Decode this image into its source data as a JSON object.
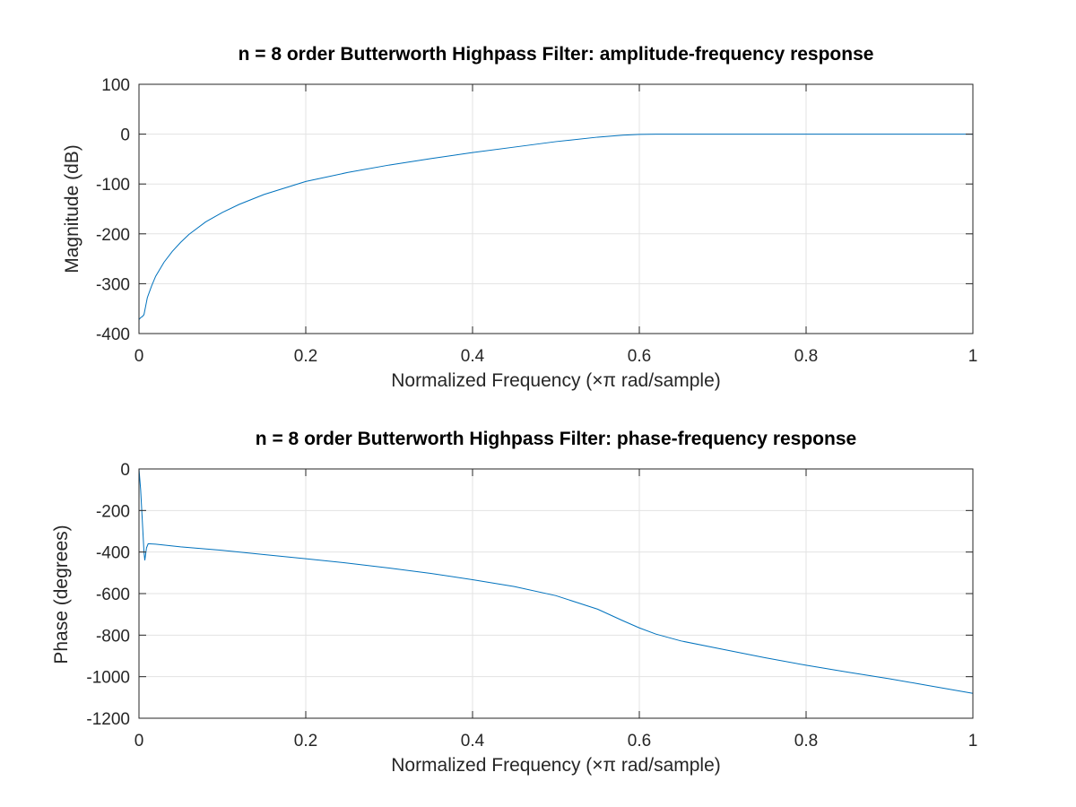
{
  "chart_data": [
    {
      "type": "line",
      "title": "n = 8 order Butterworth Highpass Filter: amplitude-frequency response",
      "xlabel": "Normalized Frequency (×π rad/sample)",
      "ylabel": "Magnitude (dB)",
      "xlim": [
        0,
        1
      ],
      "ylim": [
        -400,
        100
      ],
      "xticks": [
        0,
        0.2,
        0.4,
        0.6,
        0.8,
        1
      ],
      "xtick_labels": [
        "0",
        "0.2",
        "0.4",
        "0.6",
        "0.8",
        "1"
      ],
      "yticks": [
        100,
        0,
        -100,
        -200,
        -300,
        -400
      ],
      "ytick_labels": [
        "100",
        "0",
        "-100",
        "-200",
        "-300",
        "-400"
      ],
      "grid": true,
      "color": "#0072bd",
      "series": [
        {
          "x": [
            0,
            0.002,
            0.004,
            0.006,
            0.008,
            0.01,
            0.015,
            0.02,
            0.03,
            0.04,
            0.05,
            0.06,
            0.08,
            0.1,
            0.12,
            0.15,
            0.2,
            0.25,
            0.3,
            0.35,
            0.4,
            0.45,
            0.5,
            0.55,
            0.58,
            0.6,
            0.62,
            0.65,
            0.7,
            0.8,
            0.9,
            1.0
          ],
          "y": [
            -372,
            -368,
            -366,
            -362,
            -345,
            -328,
            -305,
            -285,
            -257,
            -235,
            -217,
            -201,
            -176,
            -157,
            -141,
            -121,
            -95,
            -77,
            -62,
            -49,
            -37,
            -26,
            -15,
            -6,
            -2,
            -0.5,
            0,
            0,
            0,
            0,
            0,
            0
          ]
        }
      ]
    },
    {
      "type": "line",
      "title": "n = 8 order Butterworth Highpass Filter: phase-frequency response",
      "xlabel": "Normalized Frequency (×π rad/sample)",
      "ylabel": "Phase (degrees)",
      "xlim": [
        0,
        1
      ],
      "ylim": [
        -1200,
        0
      ],
      "xticks": [
        0,
        0.2,
        0.4,
        0.6,
        0.8,
        1
      ],
      "xtick_labels": [
        "0",
        "0.2",
        "0.4",
        "0.6",
        "0.8",
        "1"
      ],
      "yticks": [
        0,
        -200,
        -400,
        -600,
        -800,
        -1000,
        -1200
      ],
      "ytick_labels": [
        "0",
        "-200",
        "-400",
        "-600",
        "-800",
        "-1000",
        "-1200"
      ],
      "grid": true,
      "color": "#0072bd",
      "series": [
        {
          "x": [
            0,
            0.002,
            0.004,
            0.006,
            0.007,
            0.009,
            0.011,
            0.02,
            0.05,
            0.1,
            0.15,
            0.2,
            0.25,
            0.3,
            0.35,
            0.4,
            0.45,
            0.5,
            0.55,
            0.58,
            0.6,
            0.62,
            0.65,
            0.7,
            0.75,
            0.8,
            0.85,
            0.9,
            0.95,
            1.0
          ],
          "y": [
            0,
            -100,
            -250,
            -400,
            -440,
            -380,
            -360,
            -362,
            -375,
            -392,
            -412,
            -432,
            -453,
            -477,
            -503,
            -533,
            -566,
            -610,
            -675,
            -730,
            -765,
            -795,
            -828,
            -868,
            -908,
            -945,
            -978,
            -1010,
            -1045,
            -1080
          ]
        }
      ]
    }
  ]
}
